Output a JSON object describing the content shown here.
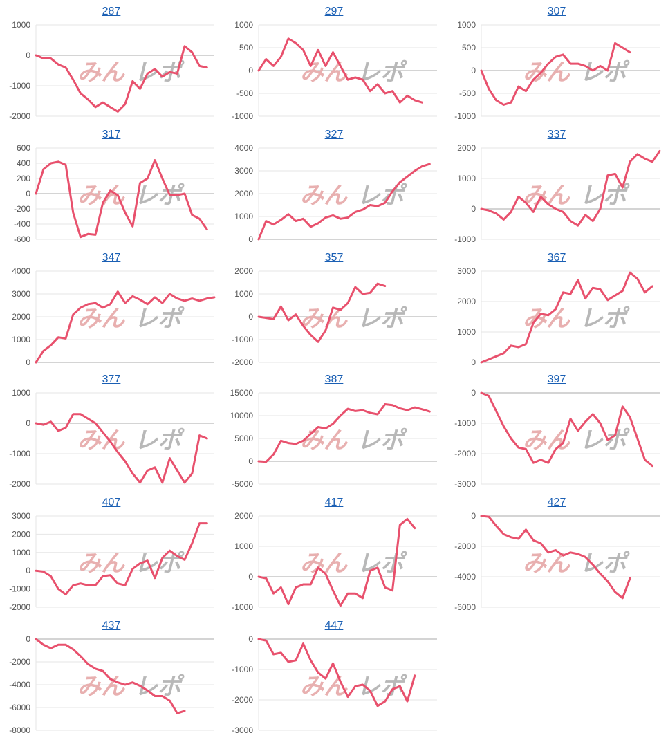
{
  "colors": {
    "line": "#e8516d",
    "grid": "#e6e6e6",
    "zero": "#aaaaaa",
    "title": "#1a5fb4",
    "watermark_pink": "#e8b0b0",
    "watermark_gray": "#b8b8b8"
  },
  "watermark": "みんレポ",
  "chart_data": [
    {
      "type": "line",
      "title": "287",
      "ylim": [
        -2000,
        1000
      ],
      "yticks": [
        1000,
        0,
        -1000,
        -2000
      ],
      "values": [
        0,
        -100,
        -100,
        -300,
        -400,
        -800,
        -1250,
        -1450,
        -1700,
        -1550,
        -1700,
        -1850,
        -1600,
        -850,
        -1100,
        -600,
        -450,
        -700,
        -550,
        -600,
        300,
        100,
        -350,
        -400
      ]
    },
    {
      "type": "line",
      "title": "297",
      "ylim": [
        -1000,
        1000
      ],
      "yticks": [
        1000,
        500,
        0,
        -500,
        -1000
      ],
      "values": [
        0,
        250,
        100,
        300,
        700,
        600,
        450,
        100,
        450,
        100,
        400,
        100,
        -200,
        -150,
        -200,
        -450,
        -300,
        -500,
        -450,
        -700,
        -550,
        -650,
        -700
      ]
    },
    {
      "type": "line",
      "title": "307",
      "ylim": [
        -1000,
        1000
      ],
      "yticks": [
        1000,
        500,
        0,
        -500,
        -1000
      ],
      "values": [
        0,
        -400,
        -650,
        -750,
        -700,
        -350,
        -450,
        -200,
        -50,
        150,
        300,
        350,
        150,
        150,
        100,
        0,
        100,
        0,
        600,
        500,
        400
      ]
    },
    {
      "type": "line",
      "title": "317",
      "ylim": [
        -600,
        600
      ],
      "yticks": [
        600,
        400,
        200,
        0,
        -200,
        -400,
        -600
      ],
      "values": [
        0,
        320,
        400,
        420,
        380,
        -250,
        -570,
        -530,
        -540,
        -120,
        40,
        -20,
        -250,
        -430,
        140,
        200,
        440,
        200,
        -20,
        -20,
        0,
        -280,
        -330,
        -470
      ]
    },
    {
      "type": "line",
      "title": "327",
      "ylim": [
        0,
        4000
      ],
      "yticks": [
        4000,
        3000,
        2000,
        1000,
        0
      ],
      "values": [
        0,
        800,
        650,
        850,
        1100,
        800,
        900,
        550,
        700,
        950,
        1050,
        900,
        950,
        1200,
        1300,
        1500,
        1450,
        1600,
        2100,
        2500,
        2750,
        3000,
        3200,
        3300
      ]
    },
    {
      "type": "line",
      "title": "337",
      "ylim": [
        -1000,
        2000
      ],
      "yticks": [
        2000,
        1000,
        0,
        -1000
      ],
      "values": [
        0,
        -50,
        -150,
        -350,
        -100,
        400,
        200,
        -100,
        400,
        150,
        0,
        -100,
        -400,
        -550,
        -200,
        -400,
        0,
        1100,
        1150,
        700,
        1550,
        1800,
        1650,
        1550,
        1900
      ]
    },
    {
      "type": "line",
      "title": "347",
      "ylim": [
        0,
        4000
      ],
      "yticks": [
        4000,
        3000,
        2000,
        1000,
        0
      ],
      "values": [
        0,
        500,
        750,
        1100,
        1050,
        2100,
        2400,
        2550,
        2600,
        2400,
        2550,
        3100,
        2600,
        2900,
        2750,
        2550,
        2850,
        2600,
        3000,
        2800,
        2700,
        2800,
        2700,
        2800,
        2850
      ]
    },
    {
      "type": "line",
      "title": "357",
      "ylim": [
        -2000,
        2000
      ],
      "yticks": [
        2000,
        1000,
        0,
        -1000,
        -2000
      ],
      "values": [
        0,
        -50,
        -100,
        450,
        -150,
        100,
        -400,
        -800,
        -1100,
        -600,
        400,
        300,
        600,
        1300,
        1000,
        1050,
        1450,
        1350
      ]
    },
    {
      "type": "line",
      "title": "367",
      "ylim": [
        0,
        3000
      ],
      "yticks": [
        3000,
        2000,
        1000,
        0
      ],
      "values": [
        0,
        100,
        200,
        300,
        550,
        500,
        600,
        1300,
        1600,
        1550,
        1750,
        2300,
        2250,
        2700,
        2100,
        2450,
        2400,
        2050,
        2200,
        2350,
        2950,
        2750,
        2300,
        2500
      ]
    },
    {
      "type": "line",
      "title": "377",
      "ylim": [
        -2000,
        1000
      ],
      "yticks": [
        1000,
        0,
        -1000,
        -2000
      ],
      "values": [
        0,
        -50,
        50,
        -250,
        -150,
        300,
        300,
        150,
        0,
        -300,
        -600,
        -950,
        -1250,
        -1650,
        -1950,
        -1550,
        -1450,
        -1950,
        -1150,
        -1550,
        -1950,
        -1650,
        -400,
        -500
      ]
    },
    {
      "type": "line",
      "title": "387",
      "ylim": [
        -5000,
        15000
      ],
      "yticks": [
        15000,
        10000,
        5000,
        0,
        -5000
      ],
      "values": [
        0,
        -100,
        1500,
        4500,
        4000,
        3800,
        4500,
        6000,
        7500,
        7200,
        8200,
        10000,
        11500,
        11000,
        11200,
        10600,
        10300,
        12500,
        12300,
        11600,
        11200,
        11800,
        11400,
        10900
      ]
    },
    {
      "type": "line",
      "title": "397",
      "ylim": [
        -3000,
        0
      ],
      "yticks": [
        0,
        -1000,
        -2000,
        -3000
      ],
      "values": [
        0,
        -100,
        -600,
        -1100,
        -1500,
        -1800,
        -1850,
        -2300,
        -2200,
        -2300,
        -1850,
        -1650,
        -850,
        -1250,
        -950,
        -700,
        -1000,
        -1550,
        -1400,
        -450,
        -800,
        -1500,
        -2200,
        -2400
      ]
    },
    {
      "type": "line",
      "title": "407",
      "ylim": [
        -2000,
        3000
      ],
      "yticks": [
        3000,
        2000,
        1000,
        0,
        -1000,
        -2000
      ],
      "values": [
        0,
        -50,
        -300,
        -1000,
        -1300,
        -800,
        -700,
        -800,
        -800,
        -300,
        -250,
        -700,
        -800,
        100,
        400,
        550,
        -400,
        700,
        1100,
        800,
        600,
        1500,
        2600,
        2600
      ]
    },
    {
      "type": "line",
      "title": "417",
      "ylim": [
        -1000,
        2000
      ],
      "yticks": [
        2000,
        1000,
        0,
        -1000
      ],
      "values": [
        0,
        -50,
        -550,
        -350,
        -900,
        -350,
        -250,
        -250,
        300,
        100,
        -450,
        -950,
        -550,
        -550,
        -700,
        200,
        300,
        -350,
        -450,
        1700,
        1900,
        1600
      ]
    },
    {
      "type": "line",
      "title": "427",
      "ylim": [
        -6000,
        0
      ],
      "yticks": [
        0,
        -2000,
        -4000,
        -6000
      ],
      "values": [
        0,
        -50,
        -650,
        -1200,
        -1400,
        -1500,
        -900,
        -1600,
        -1800,
        -2400,
        -2250,
        -2600,
        -2400,
        -2500,
        -2700,
        -3200,
        -3800,
        -4300,
        -5000,
        -5400,
        -4100
      ]
    },
    {
      "type": "line",
      "title": "437",
      "ylim": [
        -8000,
        0
      ],
      "yticks": [
        0,
        -2000,
        -4000,
        -6000,
        -8000
      ],
      "values": [
        0,
        -500,
        -800,
        -500,
        -500,
        -900,
        -1500,
        -2200,
        -2600,
        -2800,
        -3500,
        -3800,
        -4000,
        -3800,
        -4100,
        -4500,
        -5000,
        -5000,
        -5400,
        -6500,
        -6300
      ]
    },
    {
      "type": "line",
      "title": "447",
      "ylim": [
        -3000,
        0
      ],
      "yticks": [
        0,
        -1000,
        -2000,
        -3000
      ],
      "values": [
        0,
        -50,
        -500,
        -450,
        -750,
        -700,
        -150,
        -700,
        -1100,
        -1300,
        -800,
        -1400,
        -1900,
        -1550,
        -1500,
        -1700,
        -2200,
        -2050,
        -1650,
        -1550,
        -2050,
        -1200
      ]
    }
  ]
}
